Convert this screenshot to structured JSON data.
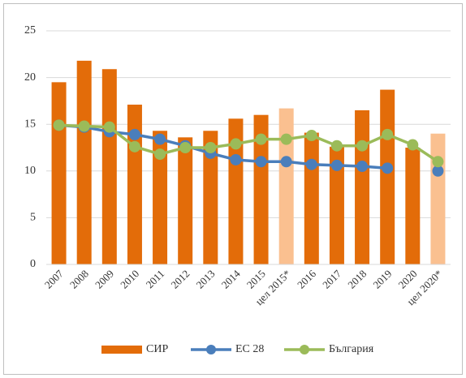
{
  "chart_data": {
    "type": "bar-line",
    "categories": [
      "2007",
      "2008",
      "2009",
      "2010",
      "2011",
      "2012",
      "2013",
      "2014",
      "2015",
      "цел 2015*",
      "2016",
      "2017",
      "2018",
      "2019",
      "2020",
      "цел 2020*"
    ],
    "series": [
      {
        "name": "СИР",
        "type": "bar",
        "color": "#e36c09",
        "colors": [
          "#e36c09",
          "#e36c09",
          "#e36c09",
          "#e36c09",
          "#e36c09",
          "#e36c09",
          "#e36c09",
          "#e36c09",
          "#e36c09",
          "#fac090",
          "#e36c09",
          "#e36c09",
          "#e36c09",
          "#e36c09",
          "#e36c09",
          "#fac090"
        ],
        "values": [
          19.5,
          21.8,
          20.9,
          17.1,
          14.3,
          13.6,
          14.3,
          15.6,
          16.0,
          16.7,
          14.1,
          12.6,
          16.5,
          18.7,
          12.5,
          14.0
        ]
      },
      {
        "name": "ЕС 28",
        "type": "line",
        "color": "#4a7ebb",
        "values": [
          14.9,
          14.7,
          14.2,
          13.9,
          13.4,
          12.7,
          11.9,
          11.2,
          11.0,
          11.0,
          10.7,
          10.6,
          10.5,
          10.3,
          null,
          10.0
        ]
      },
      {
        "name": "България",
        "type": "line",
        "color": "#9bbb59",
        "values": [
          14.9,
          14.8,
          14.7,
          12.6,
          11.8,
          12.5,
          12.5,
          12.9,
          13.4,
          13.4,
          13.8,
          12.7,
          12.7,
          13.9,
          12.8,
          11.0
        ]
      }
    ],
    "ylim": [
      0,
      25
    ],
    "yticks": [
      0,
      5,
      10,
      15,
      20,
      25
    ],
    "grid": true,
    "legend": "bottom"
  }
}
